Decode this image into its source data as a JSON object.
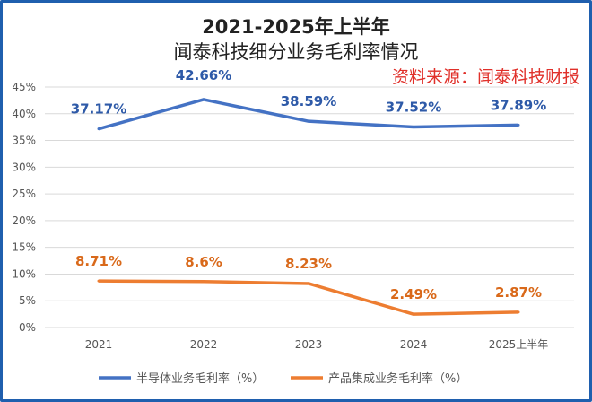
{
  "chart_data": {
    "type": "line",
    "title": "2021-2025年上半年",
    "subtitle": "闻泰科技细分业务毛利率情况",
    "annotation": "资料来源：闻泰科技财报",
    "categories": [
      "2021",
      "2022",
      "2023",
      "2024",
      "2025上半年"
    ],
    "ylim": [
      0,
      45
    ],
    "yticks": [
      "0%",
      "5%",
      "10%",
      "15%",
      "20%",
      "25%",
      "30%",
      "35%",
      "40%",
      "45%"
    ],
    "grid": true,
    "legend_position": "bottom",
    "series": [
      {
        "name": "半导体业务毛利率（%）",
        "values": [
          37.17,
          42.66,
          38.59,
          37.52,
          37.89
        ],
        "labels": [
          "37.17%",
          "42.66%",
          "38.59%",
          "37.52%",
          "37.89%"
        ],
        "color": "#4472c4",
        "label_color": "#2e5aa8"
      },
      {
        "name": "产品集成业务毛利率（%）",
        "values": [
          8.71,
          8.6,
          8.23,
          2.49,
          2.87
        ],
        "labels": [
          "8.71%",
          "8.6%",
          "8.23%",
          "2.49%",
          "2.87%"
        ],
        "color": "#ed7d31",
        "label_color": "#d9691a"
      }
    ]
  }
}
